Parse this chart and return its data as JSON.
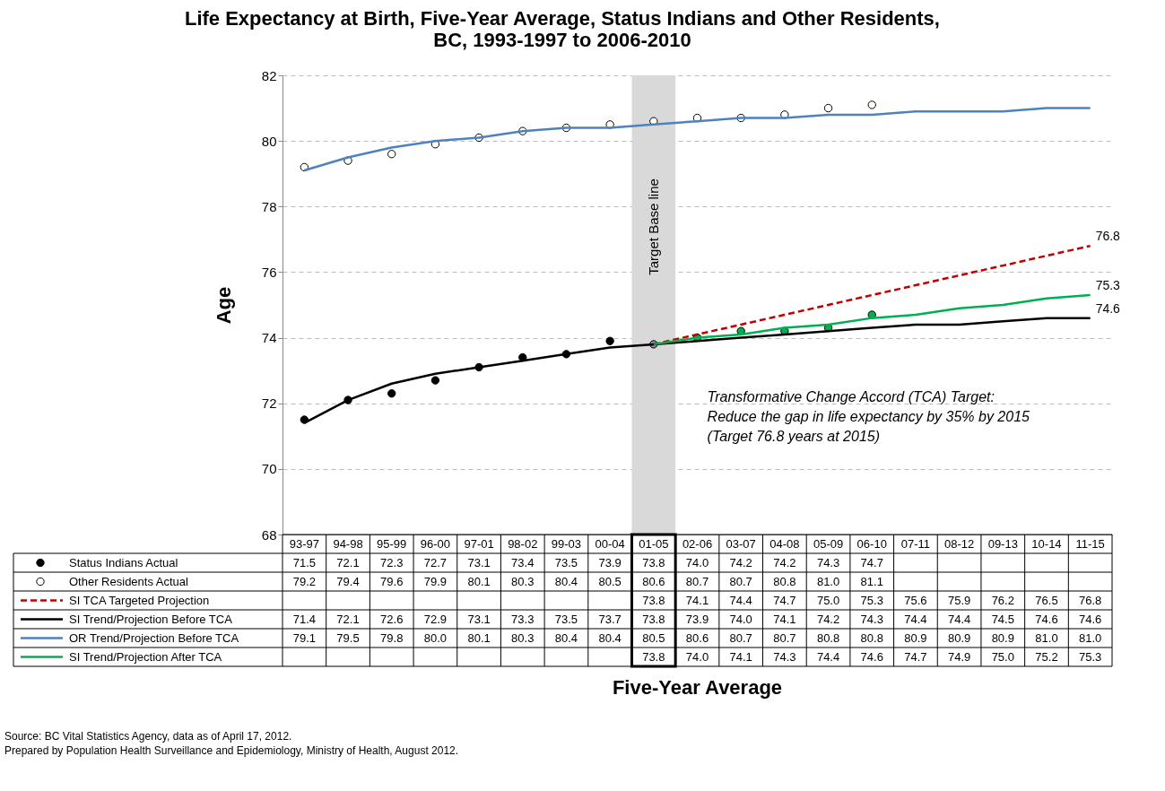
{
  "chart_data": {
    "type": "line",
    "title": "Life Expectancy at Birth, Five-Year Average, Status Indians and Other Residents,\nBC, 1993-1997 to 2006-2010",
    "ylabel": "Age",
    "categories": [
      "93-97",
      "94-98",
      "95-99",
      "96-00",
      "97-01",
      "98-02",
      "99-03",
      "00-04",
      "01-05",
      "02-06",
      "03-07",
      "04-08",
      "05-09",
      "06-10",
      "07-11",
      "08-12",
      "09-13",
      "10-14",
      "11-15"
    ],
    "ylim": [
      68,
      82
    ],
    "yticks": [
      68,
      70,
      72,
      74,
      76,
      78,
      80,
      82
    ],
    "grid": "y",
    "legend": "bottom",
    "series": [
      {
        "name": "Status Indians Actual",
        "type": "scatter",
        "marker": "circle",
        "color": "#000000",
        "colors": [
          "#000000",
          "#000000",
          "#000000",
          "#000000",
          "#000000",
          "#000000",
          "#000000",
          "#000000",
          "#8c86a8",
          "#00b050",
          "#00b050",
          "#00b050",
          "#00b050",
          "#00b050",
          null,
          null,
          null,
          null,
          null
        ],
        "values": [
          71.5,
          72.1,
          72.3,
          72.7,
          73.1,
          73.4,
          73.5,
          73.9,
          73.8,
          74.0,
          74.2,
          74.2,
          74.3,
          74.7,
          null,
          null,
          null,
          null,
          null
        ],
        "value_labels": [
          "71.5",
          "72.1",
          "72.3",
          "72.7",
          "73.1",
          "73.4",
          "73.5",
          "73.9",
          "73.8",
          "74.0",
          "74.2",
          "74.2",
          "74.3",
          "74.7",
          null,
          null,
          null,
          null,
          null
        ]
      },
      {
        "name": "Other Residents Actual",
        "type": "scatter",
        "marker": "circle",
        "color": "#ffffff",
        "values": [
          79.2,
          79.4,
          79.6,
          79.9,
          80.1,
          80.3,
          80.4,
          80.5,
          80.6,
          80.7,
          80.7,
          80.8,
          81.0,
          81.1,
          null,
          null,
          null,
          null,
          null
        ],
        "value_labels": [
          "79.2",
          "79.4",
          "79.6",
          "79.9",
          "80.1",
          "80.3",
          "80.4",
          "80.5",
          "80.6",
          "80.7",
          "80.7",
          "80.8",
          "81.0",
          "81.1",
          null,
          null,
          null,
          null,
          null
        ]
      },
      {
        "name": "SI TCA Targeted Projection",
        "line_style": "dashed",
        "color": "#c00000",
        "values": [
          null,
          null,
          null,
          null,
          null,
          null,
          null,
          null,
          73.8,
          74.1,
          74.4,
          74.7,
          75.0,
          75.3,
          75.6,
          75.9,
          76.2,
          76.5,
          76.8
        ],
        "value_labels": [
          null,
          null,
          null,
          null,
          null,
          null,
          null,
          null,
          "73.8",
          "74.1",
          "74.4",
          "74.7",
          "75.0",
          "75.3",
          "75.6",
          "75.9",
          "76.2",
          "76.5",
          "76.8"
        ]
      },
      {
        "name": "SI Trend/Projection Before TCA",
        "line_style": "solid",
        "color": "#000000",
        "values": [
          71.4,
          72.1,
          72.6,
          72.9,
          73.1,
          73.3,
          73.5,
          73.7,
          73.8,
          73.9,
          74.0,
          74.1,
          74.2,
          74.3,
          74.4,
          74.4,
          74.5,
          74.6,
          74.6
        ],
        "value_labels": [
          "71.4",
          "72.1",
          "72.6",
          "72.9",
          "73.1",
          "73.3",
          "73.5",
          "73.7",
          "73.8",
          "73.9",
          "74.0",
          "74.1",
          "74.2",
          "74.3",
          "74.4",
          "74.4",
          "74.5",
          "74.6",
          "74.6"
        ]
      },
      {
        "name": "OR Trend/Projection Before TCA",
        "line_style": "solid",
        "color": "#4f81bd",
        "values": [
          79.1,
          79.5,
          79.8,
          80.0,
          80.1,
          80.3,
          80.4,
          80.4,
          80.5,
          80.6,
          80.7,
          80.7,
          80.8,
          80.8,
          80.9,
          80.9,
          80.9,
          81.0,
          81.0
        ],
        "value_labels": [
          "79.1",
          "79.5",
          "79.8",
          "80.0",
          "80.1",
          "80.3",
          "80.4",
          "80.4",
          "80.5",
          "80.6",
          "80.7",
          "80.7",
          "80.8",
          "80.8",
          "80.9",
          "80.9",
          "80.9",
          "81.0",
          "81.0"
        ]
      },
      {
        "name": "SI Trend/Projection After TCA",
        "line_style": "solid",
        "color": "#00b050",
        "values": [
          null,
          null,
          null,
          null,
          null,
          null,
          null,
          null,
          73.8,
          74.0,
          74.1,
          74.3,
          74.4,
          74.6,
          74.7,
          74.9,
          75.0,
          75.2,
          75.3
        ],
        "value_labels": [
          null,
          null,
          null,
          null,
          null,
          null,
          null,
          null,
          "73.8",
          "74.0",
          "74.1",
          "74.3",
          "74.4",
          "74.6",
          "74.7",
          "74.9",
          "75.0",
          "75.2",
          "75.3"
        ]
      }
    ],
    "bands": [
      {
        "axis": "x",
        "from": "01-05",
        "to": "01-05",
        "label": "Target Base line",
        "color": "#d9d9d9"
      }
    ],
    "annotations": [
      {
        "text": "76.8",
        "x": "11-15",
        "y": 76.8
      },
      {
        "text": "75.3",
        "x": "11-15",
        "y": 75.3
      },
      {
        "text": "74.6",
        "x": "11-15",
        "y": 74.6
      },
      "Transformative Change Accord (TCA) Target:\nReduce the gap in life expectancy by 35% by 2015\n(Target 76.8 years at 2015)",
      "Five-Year Average",
      "Source:  BC Vital Statistics Agency, data as of April 17, 2012.",
      "Prepared by Population Health Surveillance and Epidemiology, Ministry of Health, August 2012."
    ]
  }
}
